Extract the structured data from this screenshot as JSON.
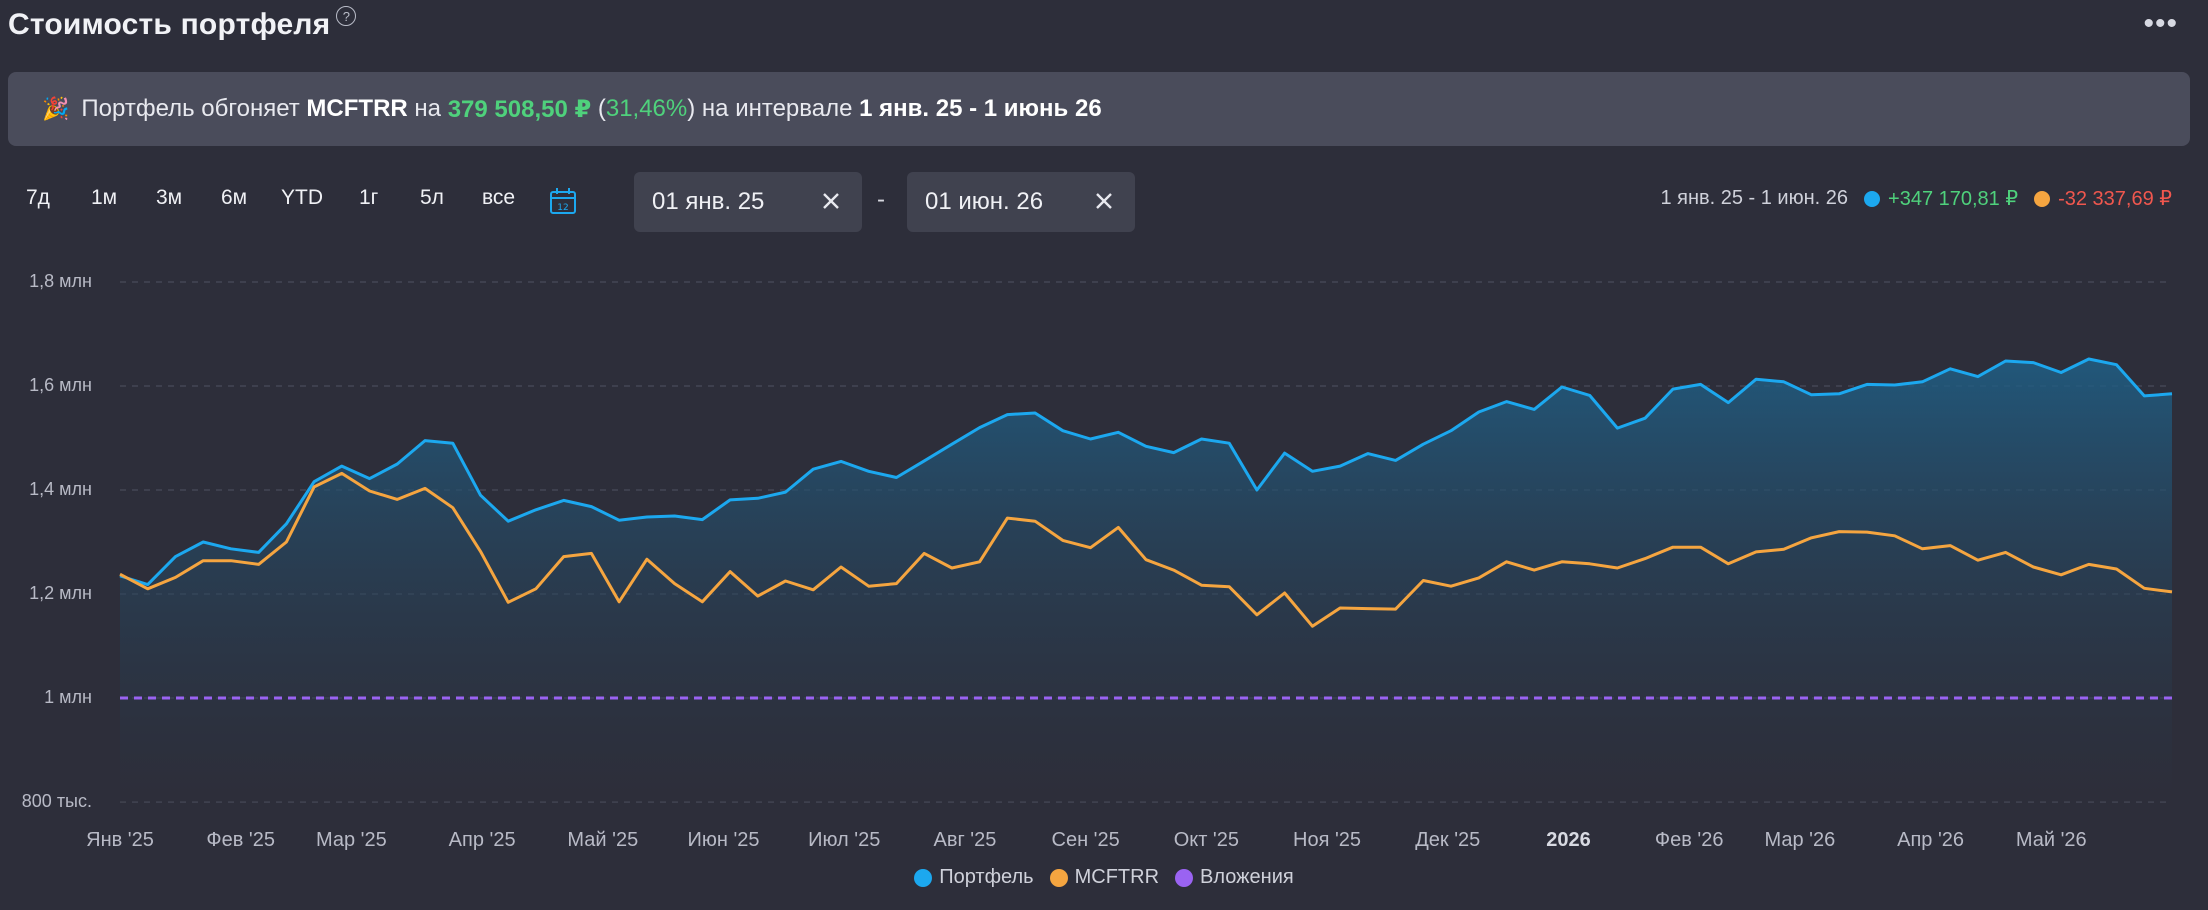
{
  "header": {
    "title": "Стоимость портфеля",
    "help_icon": "?",
    "more_icon": "•••"
  },
  "banner": {
    "icon": "🎉",
    "text_prefix": "Портфель обгоняет",
    "benchmark": "MCFTRR",
    "text_on": "на",
    "amount": "379 508,50 ₽",
    "paren_open": "(",
    "percent": "31,46%",
    "paren_close": ")",
    "text_interval": "на интервале",
    "from": "1 янв. 25",
    "sep": "-",
    "to": "1 июнь 26"
  },
  "range_buttons": [
    "7д",
    "1м",
    "3м",
    "6м",
    "YTD",
    "1г",
    "5л",
    "все"
  ],
  "date_from": "01 янв. 25",
  "date_to": "01 июн. 26",
  "date_separator": "-",
  "summary": {
    "period": "1 янв. 25 - 1 июн. 26",
    "portfolio_change": "+347 170,81 ₽",
    "benchmark_change": "-32 337,69 ₽"
  },
  "colors": {
    "portfolio": "#1ca8ef",
    "benchmark": "#f5a540",
    "contributions": "#9a63f2",
    "positive": "#4fd17c",
    "negative": "#f0574e"
  },
  "legend": [
    "Портфель",
    "MCFTRR",
    "Вложения"
  ],
  "chart_data": {
    "type": "line",
    "y_ticks": [
      "1,8 млн",
      "1,6 млн",
      "1,4 млн",
      "1,2 млн",
      "1 млн",
      "800 тыс."
    ],
    "y_tick_values": [
      1800000,
      1600000,
      1400000,
      1200000,
      1000000,
      800000
    ],
    "ylim": [
      800000,
      1800000
    ],
    "x_ticks": [
      "Янв '25",
      "Фев '25",
      "Мар '25",
      "Апр '25",
      "Май '25",
      "Июн '25",
      "Июл '25",
      "Авг '25",
      "Сен '25",
      "Окт '25",
      "Ноя '25",
      "Дек '25",
      "2026",
      "Фев '26",
      "Мар '26",
      "Апр '26",
      "Май '26"
    ],
    "x_tick_weeks": [
      0,
      6,
      11.5,
      18,
      24,
      30,
      36,
      42,
      48,
      54,
      60,
      66,
      72,
      78,
      83.5,
      90,
      96
    ],
    "x_range_weeks": [
      0,
      102
    ],
    "grid": true,
    "series": [
      {
        "name": "Портфель",
        "values": [
          1235000,
          1218000,
          1272000,
          1300000,
          1287000,
          1280000,
          1335000,
          1416000,
          1446000,
          1422000,
          1450000,
          1495000,
          1490000,
          1390000,
          1340000,
          1362000,
          1380000,
          1368000,
          1342000,
          1348000,
          1350000,
          1343000,
          1381000,
          1384000,
          1396000,
          1440000,
          1455000,
          1436000,
          1424000,
          1456000,
          1488000,
          1520000,
          1545000,
          1548000,
          1514000,
          1498000,
          1511000,
          1484000,
          1472000,
          1498000,
          1490000,
          1400000,
          1471000,
          1436000,
          1446000,
          1470000,
          1457000,
          1488000,
          1514000,
          1550000,
          1570000,
          1555000,
          1598000,
          1582000,
          1519000,
          1538000,
          1594000,
          1603000,
          1568000,
          1613000,
          1608000,
          1583000,
          1585000,
          1603000,
          1602000,
          1608000,
          1633000,
          1618000,
          1648000,
          1645000,
          1626000,
          1652000,
          1641000,
          1581000,
          1585000
        ],
        "area": true
      },
      {
        "name": "MCFTRR",
        "values": [
          1238000,
          1210000,
          1232000,
          1264000,
          1264000,
          1257000,
          1300000,
          1406000,
          1432000,
          1398000,
          1382000,
          1403000,
          1366000,
          1282000,
          1184000,
          1210000,
          1272000,
          1278000,
          1185000,
          1267000,
          1220000,
          1185000,
          1243000,
          1196000,
          1225000,
          1208000,
          1252000,
          1215000,
          1220000,
          1278000,
          1250000,
          1262000,
          1346000,
          1340000,
          1303000,
          1289000,
          1328000,
          1266000,
          1246000,
          1217000,
          1214000,
          1160000,
          1202000,
          1138000,
          1173000,
          1172000,
          1171000,
          1226000,
          1215000,
          1231000,
          1262000,
          1246000,
          1262000,
          1258000,
          1250000,
          1268000,
          1290000,
          1290000,
          1258000,
          1281000,
          1286000,
          1308000,
          1320000,
          1319000,
          1312000,
          1287000,
          1293000,
          1265000,
          1280000,
          1252000,
          1237000,
          1257000,
          1248000,
          1211000,
          1204000
        ]
      },
      {
        "name": "Вложения",
        "values": [
          1000000,
          1000000
        ],
        "style": "dashed"
      }
    ]
  }
}
